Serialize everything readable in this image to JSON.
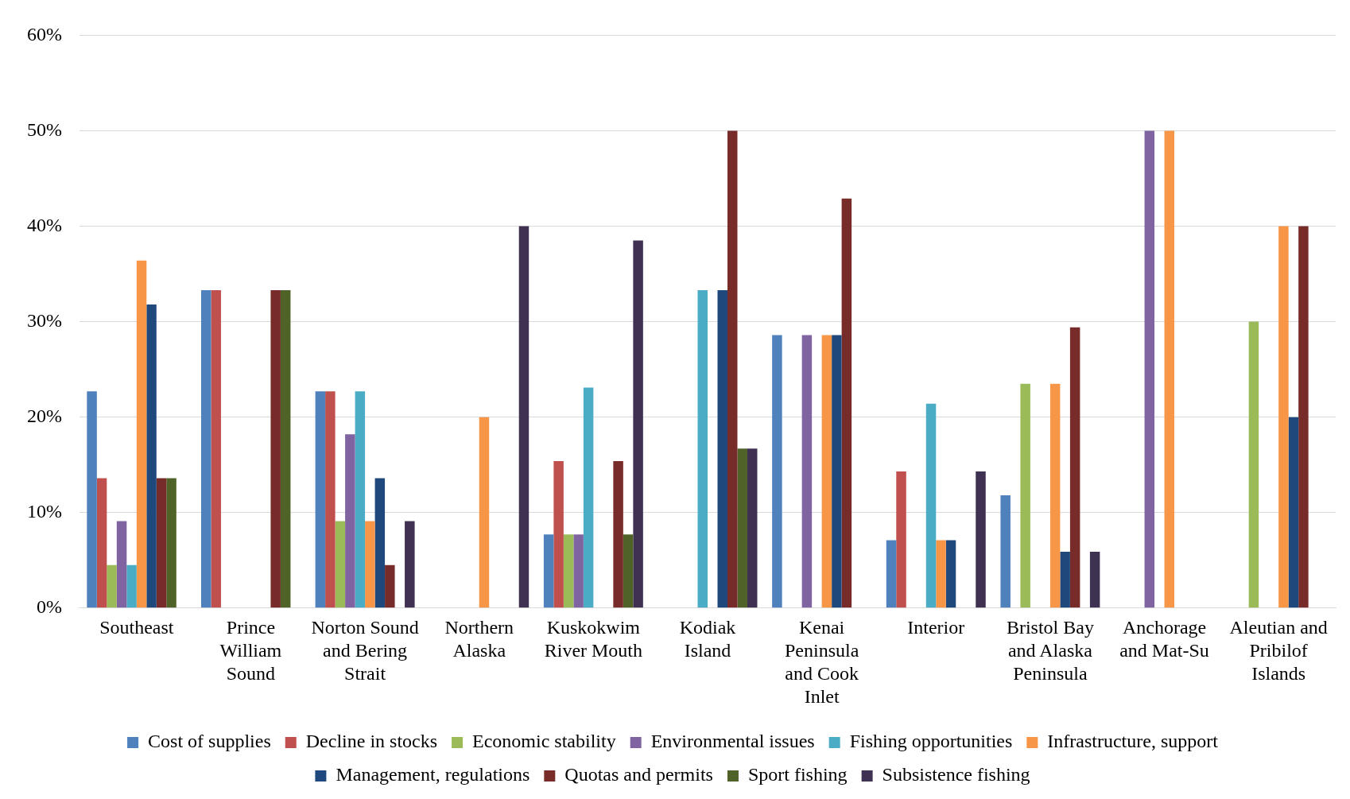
{
  "chart_data": {
    "type": "bar",
    "categories": [
      "Southeast",
      "Prince William Sound",
      "Norton Sound and Bering Strait",
      "Northern Alaska",
      "Kuskokwim River Mouth",
      "Kodiak Island",
      "Kenai Peninsula and Cook Inlet",
      "Interior",
      "Bristol Bay and Alaska Peninsula",
      "Anchorage and Mat-Su",
      "Aleutian and Pribilof Islands"
    ],
    "series": [
      {
        "name": "Cost of supplies",
        "color": "#4f81bd",
        "values": [
          22.7,
          33.3,
          22.7,
          0,
          7.7,
          0,
          28.6,
          7.1,
          11.8,
          0,
          0
        ]
      },
      {
        "name": "Decline in stocks",
        "color": "#c0504d",
        "values": [
          13.6,
          33.3,
          22.7,
          0,
          15.4,
          0,
          0,
          14.3,
          0,
          0,
          0
        ]
      },
      {
        "name": "Economic stability",
        "color": "#9bbb59",
        "values": [
          4.5,
          0,
          9.1,
          0,
          7.7,
          0,
          0,
          0,
          23.5,
          0,
          30
        ]
      },
      {
        "name": "Environmental issues",
        "color": "#8064a2",
        "values": [
          9.1,
          0,
          18.2,
          0,
          7.7,
          0,
          28.6,
          0,
          0,
          50,
          0
        ]
      },
      {
        "name": "Fishing opportunities",
        "color": "#4bacc6",
        "values": [
          4.5,
          0,
          22.7,
          0,
          23.1,
          33.3,
          0,
          21.4,
          0,
          0,
          0
        ]
      },
      {
        "name": "Infrastructure, support",
        "color": "#f79646",
        "values": [
          36.4,
          0,
          9.1,
          20,
          0,
          0,
          28.6,
          7.1,
          23.5,
          50,
          40
        ]
      },
      {
        "name": "Management, regulations",
        "color": "#1f497d",
        "values": [
          31.8,
          0,
          13.6,
          0,
          0,
          33.3,
          28.6,
          7.1,
          5.9,
          0,
          20
        ]
      },
      {
        "name": "Quotas and permits",
        "color": "#772c2a",
        "values": [
          13.6,
          33.3,
          4.5,
          0,
          15.4,
          50,
          42.9,
          0,
          29.4,
          0,
          40
        ]
      },
      {
        "name": "Sport fishing",
        "color": "#4f6228",
        "values": [
          13.6,
          33.3,
          0,
          0,
          7.7,
          16.7,
          0,
          0,
          0,
          0,
          0
        ]
      },
      {
        "name": "Subsistence fishing",
        "color": "#3f3151",
        "values": [
          0,
          0,
          9.1,
          40,
          38.5,
          16.7,
          0,
          14.3,
          5.9,
          0,
          0
        ]
      }
    ],
    "ylim": [
      0,
      60
    ],
    "yticks": [
      {
        "value": 0,
        "label": "0%"
      },
      {
        "value": 10,
        "label": "10%"
      },
      {
        "value": 20,
        "label": "20%"
      },
      {
        "value": 30,
        "label": "30%"
      },
      {
        "value": 40,
        "label": "40%"
      },
      {
        "value": 50,
        "label": "50%"
      },
      {
        "value": 60,
        "label": "60%"
      }
    ],
    "grid": "y",
    "legend": "bottom"
  }
}
